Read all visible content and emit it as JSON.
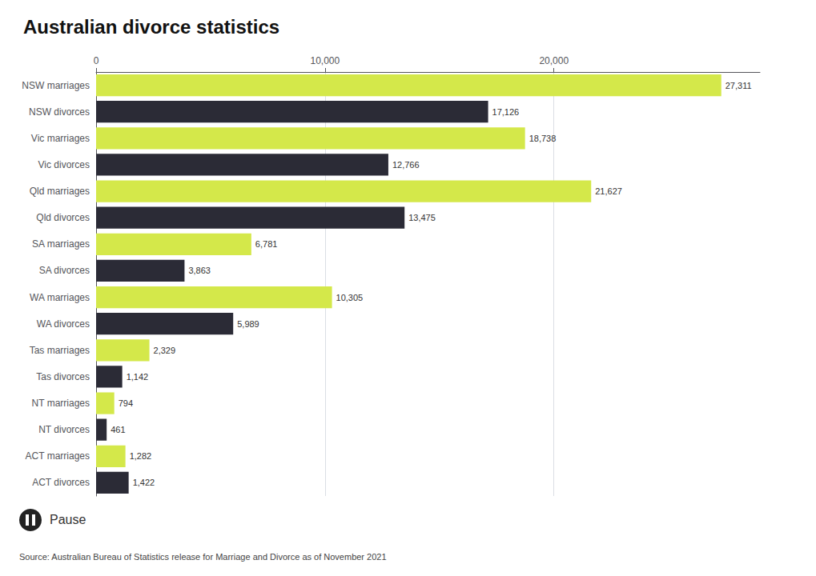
{
  "chart_data": {
    "type": "bar",
    "orientation": "horizontal",
    "title": "Australian divorce statistics",
    "categories": [
      "NSW marriages",
      "NSW divorces",
      "Vic marriages",
      "Vic divorces",
      "Qld marriages",
      "Qld divorces",
      "SA marriages",
      "SA divorces",
      "WA marriages",
      "WA divorces",
      "Tas marriages",
      "Tas divorces",
      "NT marriages",
      "NT divorces",
      "ACT marriages",
      "ACT divorces"
    ],
    "values": [
      27311,
      17126,
      18738,
      12766,
      21627,
      13475,
      6781,
      3863,
      10305,
      5989,
      2329,
      1142,
      794,
      461,
      1282,
      1422
    ],
    "value_labels": [
      "27,311",
      "17,126",
      "18,738",
      "12,766",
      "21,627",
      "13,475",
      "6,781",
      "3,863",
      "10,305",
      "5,989",
      "2,329",
      "1,142",
      "794",
      "461",
      "1,282",
      "1,422"
    ],
    "data_labels": true,
    "colors": [
      "#d4e84a",
      "#2b2b36",
      "#d4e84a",
      "#2b2b36",
      "#d4e84a",
      "#2b2b36",
      "#d4e84a",
      "#2b2b36",
      "#d4e84a",
      "#2b2b36",
      "#d4e84a",
      "#2b2b36",
      "#d4e84a",
      "#2b2b36",
      "#d4e84a",
      "#2b2b36"
    ],
    "xlim": [
      0,
      29000
    ],
    "xticks": [
      0,
      {
        "value": 10000,
        "label": "10,000"
      },
      {
        "value": 20000,
        "label": "20,000"
      }
    ],
    "grid": true,
    "annotations": [
      "Pause",
      "Source: Australian Bureau of Statistics release for Marriage and Divorce as of November 2021"
    ]
  }
}
